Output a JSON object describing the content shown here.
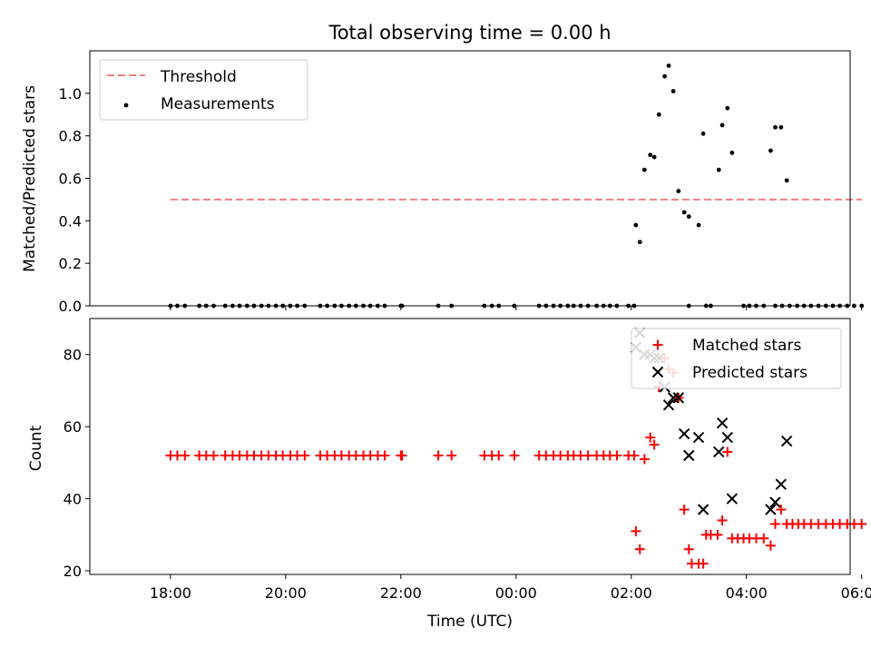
{
  "figure": {
    "title": "Total observing time = 0.00 h",
    "xlabel": "Time (UTC)",
    "xticks": [
      "18:00",
      "20:00",
      "22:00",
      "00:00",
      "02:00",
      "04:00",
      "06:00"
    ]
  },
  "chart_data": [
    {
      "type": "scatter",
      "ylabel": "Matched/Predicted stars",
      "xlim_hours": [
        16.6,
        29.8
      ],
      "ylim": [
        0,
        1.2
      ],
      "yticks": [
        "0.0",
        "0.2",
        "0.4",
        "0.6",
        "0.8",
        "1.0"
      ],
      "legend_position": "top-left",
      "threshold": {
        "name": "Threshold",
        "value": 0.5,
        "x_range_hours": [
          18.0,
          30.0
        ],
        "color": "#f08080"
      },
      "measurements": {
        "name": "Measurements",
        "color": "#000000",
        "zero_times_hours": [
          18.0,
          18.12,
          18.25,
          18.5,
          18.62,
          18.75,
          18.95,
          19.08,
          19.2,
          19.33,
          19.45,
          19.58,
          19.7,
          19.83,
          19.95,
          20.08,
          20.2,
          20.33,
          20.6,
          20.72,
          20.85,
          20.97,
          21.1,
          21.22,
          21.35,
          21.47,
          21.6,
          21.72,
          22.0,
          22.02,
          22.65,
          22.88,
          23.45,
          23.58,
          23.7,
          23.97,
          24.4,
          24.52,
          24.65,
          24.77,
          24.9,
          25.0,
          25.12,
          25.25,
          25.4,
          25.52,
          25.63,
          25.75,
          25.95,
          26.05,
          27.0,
          27.3,
          27.38,
          27.95,
          28.05,
          28.17,
          28.3,
          28.5,
          28.62,
          28.75,
          28.88,
          29.0,
          29.12,
          29.25,
          29.38,
          29.5,
          29.62,
          29.75,
          29.87,
          30.0
        ],
        "points": [
          {
            "t": 26.08,
            "v": 0.38
          },
          {
            "t": 26.15,
            "v": 0.3
          },
          {
            "t": 26.23,
            "v": 0.64
          },
          {
            "t": 26.33,
            "v": 0.71
          },
          {
            "t": 26.4,
            "v": 0.7
          },
          {
            "t": 26.48,
            "v": 0.9
          },
          {
            "t": 26.58,
            "v": 1.08
          },
          {
            "t": 26.65,
            "v": 1.13
          },
          {
            "t": 26.73,
            "v": 1.01
          },
          {
            "t": 26.82,
            "v": 0.54
          },
          {
            "t": 26.92,
            "v": 0.44
          },
          {
            "t": 27.0,
            "v": 0.42
          },
          {
            "t": 27.17,
            "v": 0.38
          },
          {
            "t": 27.25,
            "v": 0.81
          },
          {
            "t": 27.52,
            "v": 0.64
          },
          {
            "t": 27.58,
            "v": 0.85
          },
          {
            "t": 27.67,
            "v": 0.93
          },
          {
            "t": 27.75,
            "v": 0.72
          },
          {
            "t": 28.42,
            "v": 0.73
          },
          {
            "t": 28.5,
            "v": 0.84
          },
          {
            "t": 28.6,
            "v": 0.84
          },
          {
            "t": 28.7,
            "v": 0.59
          }
        ]
      }
    },
    {
      "type": "scatter",
      "ylabel": "Count",
      "xlim_hours": [
        16.6,
        29.8
      ],
      "ylim": [
        19,
        90
      ],
      "yticks": [
        "20",
        "40",
        "60",
        "80"
      ],
      "legend_position": "top-right",
      "series": [
        {
          "name": "Matched stars",
          "marker": "+",
          "color": "#ff0000",
          "points": [
            [
              18.0,
              52
            ],
            [
              18.12,
              52
            ],
            [
              18.25,
              52
            ],
            [
              18.5,
              52
            ],
            [
              18.62,
              52
            ],
            [
              18.75,
              52
            ],
            [
              18.95,
              52
            ],
            [
              19.08,
              52
            ],
            [
              19.2,
              52
            ],
            [
              19.33,
              52
            ],
            [
              19.45,
              52
            ],
            [
              19.58,
              52
            ],
            [
              19.7,
              52
            ],
            [
              19.83,
              52
            ],
            [
              19.95,
              52
            ],
            [
              20.08,
              52
            ],
            [
              20.2,
              52
            ],
            [
              20.33,
              52
            ],
            [
              20.6,
              52
            ],
            [
              20.72,
              52
            ],
            [
              20.85,
              52
            ],
            [
              20.97,
              52
            ],
            [
              21.1,
              52
            ],
            [
              21.22,
              52
            ],
            [
              21.35,
              52
            ],
            [
              21.47,
              52
            ],
            [
              21.6,
              52
            ],
            [
              21.72,
              52
            ],
            [
              22.0,
              52
            ],
            [
              22.02,
              52
            ],
            [
              22.65,
              52
            ],
            [
              22.88,
              52
            ],
            [
              23.45,
              52
            ],
            [
              23.58,
              52
            ],
            [
              23.7,
              52
            ],
            [
              23.97,
              52
            ],
            [
              24.4,
              52
            ],
            [
              24.52,
              52
            ],
            [
              24.65,
              52
            ],
            [
              24.77,
              52
            ],
            [
              24.9,
              52
            ],
            [
              25.0,
              52
            ],
            [
              25.12,
              52
            ],
            [
              25.25,
              52
            ],
            [
              25.4,
              52
            ],
            [
              25.52,
              52
            ],
            [
              25.63,
              52
            ],
            [
              25.75,
              52
            ],
            [
              25.95,
              52
            ],
            [
              26.05,
              52
            ],
            [
              26.08,
              31
            ],
            [
              26.15,
              26
            ],
            [
              26.23,
              51
            ],
            [
              26.33,
              57
            ],
            [
              26.4,
              55
            ],
            [
              26.48,
              71
            ],
            [
              26.58,
              79
            ],
            [
              26.65,
              76
            ],
            [
              26.73,
              75
            ],
            [
              26.82,
              68
            ],
            [
              26.92,
              37
            ],
            [
              27.0,
              26
            ],
            [
              27.05,
              22
            ],
            [
              27.17,
              22
            ],
            [
              27.25,
              22
            ],
            [
              27.3,
              30
            ],
            [
              27.38,
              30
            ],
            [
              27.5,
              30
            ],
            [
              27.58,
              34
            ],
            [
              27.67,
              53
            ],
            [
              27.75,
              29
            ],
            [
              27.85,
              29
            ],
            [
              27.95,
              29
            ],
            [
              28.05,
              29
            ],
            [
              28.17,
              29
            ],
            [
              28.3,
              29
            ],
            [
              28.42,
              27
            ],
            [
              28.5,
              33
            ],
            [
              28.6,
              37
            ],
            [
              28.7,
              33
            ],
            [
              28.8,
              33
            ],
            [
              28.9,
              33
            ],
            [
              29.0,
              33
            ],
            [
              29.12,
              33
            ],
            [
              29.25,
              33
            ],
            [
              29.38,
              33
            ],
            [
              29.5,
              33
            ],
            [
              29.62,
              33
            ],
            [
              29.75,
              33
            ],
            [
              29.87,
              33
            ],
            [
              30.0,
              33
            ]
          ]
        },
        {
          "name": "Predicted stars",
          "marker": "x",
          "color": "#000000",
          "points": [
            [
              26.08,
              82
            ],
            [
              26.15,
              86
            ],
            [
              26.23,
              80
            ],
            [
              26.33,
              80
            ],
            [
              26.4,
              79
            ],
            [
              26.48,
              79
            ],
            [
              26.58,
              71
            ],
            [
              26.65,
              66
            ],
            [
              26.73,
              68
            ],
            [
              26.82,
              68
            ],
            [
              26.92,
              58
            ],
            [
              27.0,
              52
            ],
            [
              27.17,
              57
            ],
            [
              27.25,
              37
            ],
            [
              27.52,
              53
            ],
            [
              27.58,
              61
            ],
            [
              27.67,
              57
            ],
            [
              27.75,
              40
            ],
            [
              28.42,
              37
            ],
            [
              28.5,
              39
            ],
            [
              28.6,
              44
            ],
            [
              28.7,
              56
            ]
          ]
        }
      ]
    }
  ]
}
